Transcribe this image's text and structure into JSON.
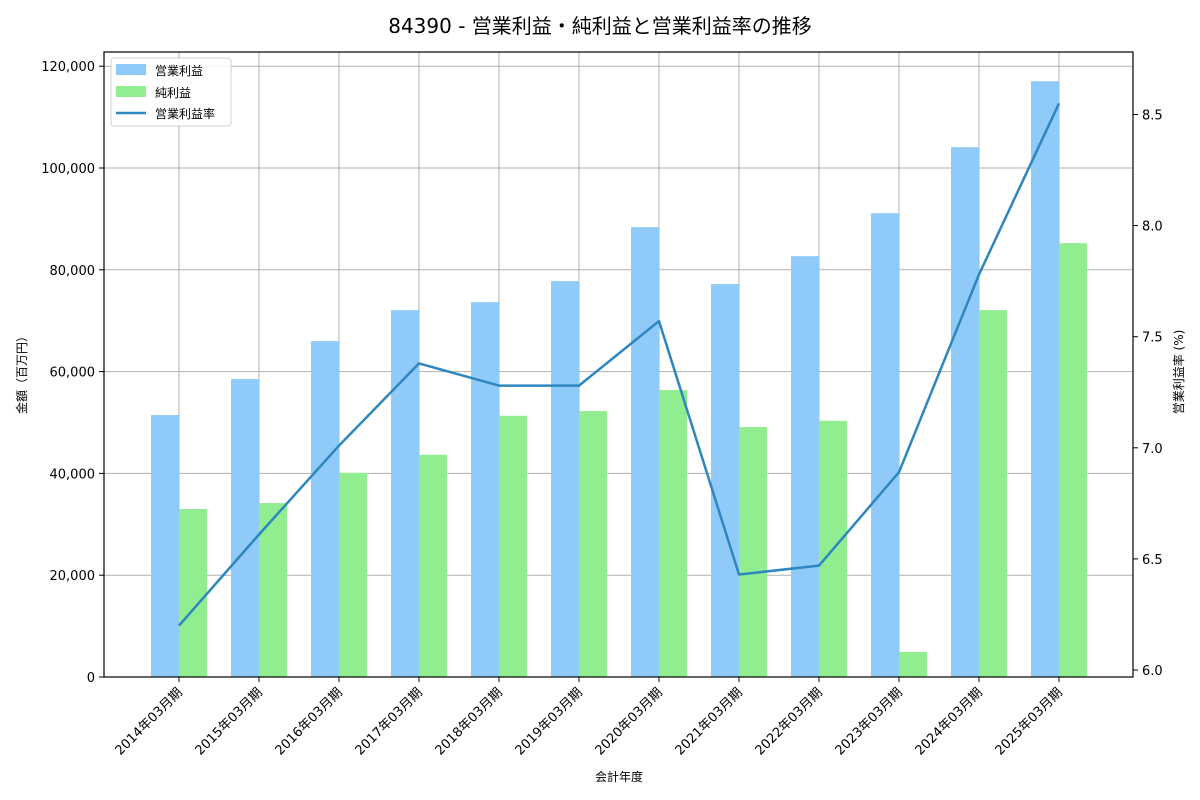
{
  "chart_data": {
    "type": "bar",
    "title": "84390 - 営業利益・純利益と営業利益率の推移",
    "xlabel": "会計年度",
    "ylabel": "金額（百万円）",
    "y2label": "営業利益率 (%)",
    "categories": [
      "2014年03月期",
      "2015年03月期",
      "2016年03月期",
      "2017年03月期",
      "2018年03月期",
      "2019年03月期",
      "2020年03月期",
      "2021年03月期",
      "2022年03月期",
      "2023年03月期",
      "2024年03月期",
      "2025年03月期"
    ],
    "series": [
      {
        "name": "営業利益",
        "type": "bar",
        "axis": "left",
        "color": "#90caf9",
        "values": [
          51460,
          58530,
          65990,
          72080,
          73650,
          77770,
          88380,
          77190,
          82680,
          91130,
          104090,
          117050
        ]
      },
      {
        "name": "純利益",
        "type": "bar",
        "axis": "left",
        "color": "#90ee90",
        "values": [
          33000,
          34170,
          40120,
          43660,
          51320,
          52240,
          56370,
          49100,
          50340,
          4910,
          72080,
          85240
        ]
      },
      {
        "name": "営業利益率",
        "type": "line",
        "axis": "right",
        "color": "#2e86c1",
        "values": [
          6.2,
          6.61,
          7.01,
          7.38,
          7.28,
          7.28,
          7.57,
          6.43,
          6.47,
          6.89,
          7.78,
          8.55
        ]
      }
    ],
    "ylim": [
      0,
      123000
    ],
    "y2lim": [
      5.97,
      8.78
    ],
    "yticks": [
      0,
      20000,
      40000,
      60000,
      80000,
      100000,
      120000
    ],
    "ytick_labels": [
      "0",
      "20,000",
      "40,000",
      "60,000",
      "80,000",
      "100,000",
      "120,000"
    ],
    "y2ticks": [
      6.0,
      6.5,
      7.0,
      7.5,
      8.0,
      8.5
    ],
    "y2tick_labels": [
      "6.0",
      "6.5",
      "7.0",
      "7.5",
      "8.0",
      "8.5"
    ],
    "grid": true,
    "legend_position": "upper left"
  }
}
